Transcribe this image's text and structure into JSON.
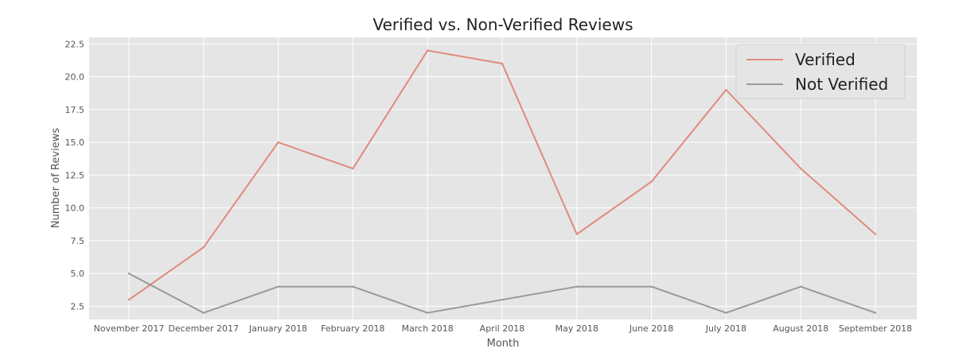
{
  "chart_data": {
    "type": "line",
    "title": "Verified vs. Non-Verified Reviews",
    "xlabel": "Month",
    "ylabel": "Number of Reviews",
    "categories": [
      "November 2017",
      "December 2017",
      "January 2018",
      "February 2018",
      "March 2018",
      "April 2018",
      "May 2018",
      "June 2018",
      "July 2018",
      "August 2018",
      "September 2018"
    ],
    "yticks": [
      "2.5",
      "5.0",
      "7.5",
      "10.0",
      "12.5",
      "15.0",
      "17.5",
      "20.0",
      "22.5"
    ],
    "ylim": [
      1.5,
      23
    ],
    "grid": true,
    "legend_position": "top-right",
    "series": [
      {
        "name": "Verified",
        "color": "#e08a7e",
        "values": [
          3,
          7,
          15,
          13,
          22,
          21,
          8,
          12,
          19,
          13,
          8
        ]
      },
      {
        "name": "Not Verified",
        "color": "#999999",
        "values": [
          5,
          2,
          4,
          4,
          2,
          3,
          4,
          4,
          2,
          4,
          2
        ]
      }
    ],
    "plot_background": "#e5e5e5",
    "grid_color": "#ffffff"
  }
}
